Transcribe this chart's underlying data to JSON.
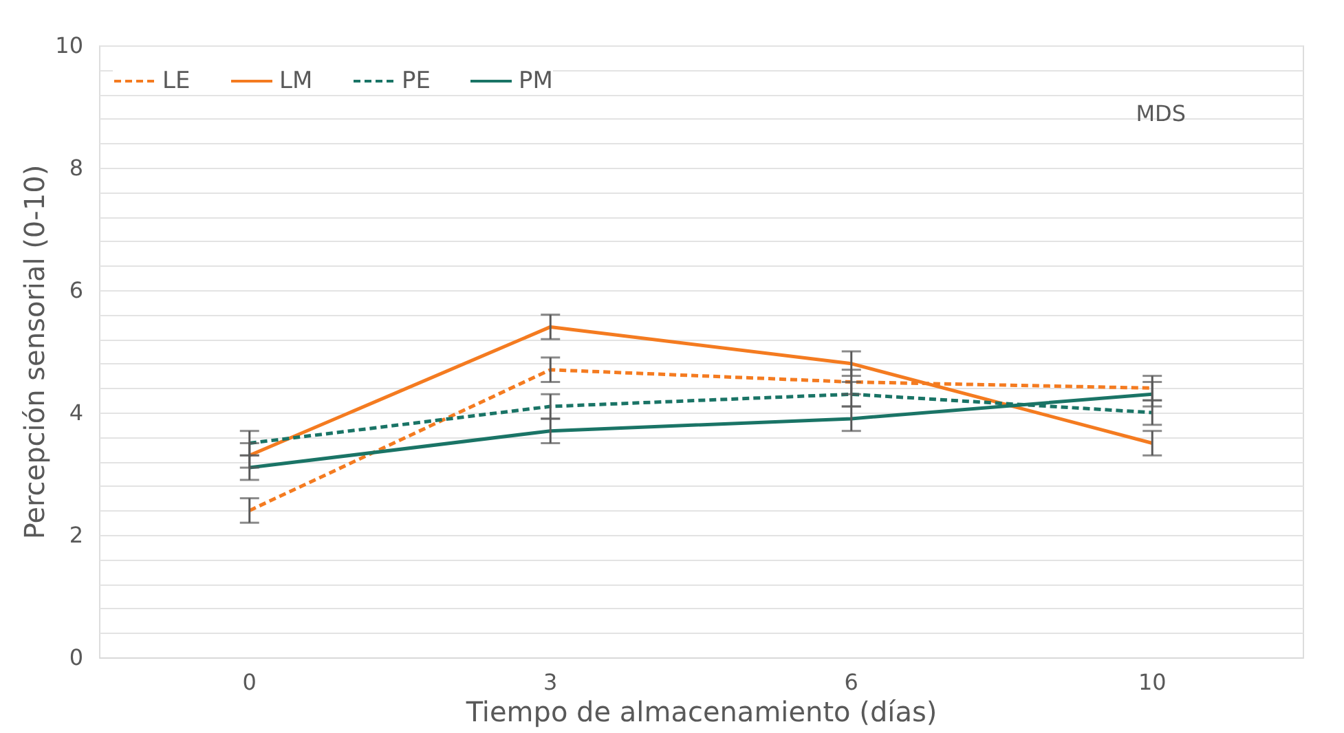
{
  "chart_data": {
    "type": "line",
    "xlabel": "Tiempo de almacenamiento (días)",
    "ylabel": "Percepción sensorial (0-10)",
    "categories": [
      "0",
      "3",
      "6",
      "10"
    ],
    "series": [
      {
        "name": "LE",
        "color": "#f47b20",
        "line_style": "dashed",
        "values": [
          2.4,
          4.7,
          4.5,
          4.4
        ],
        "errors": [
          0.2,
          0.2,
          0.2,
          0.2
        ]
      },
      {
        "name": "LM",
        "color": "#f47b20",
        "line_style": "solid",
        "values": [
          3.3,
          5.4,
          4.8,
          3.5
        ],
        "errors": [
          0.2,
          0.2,
          0.2,
          0.2
        ]
      },
      {
        "name": "PE",
        "color": "#1a7466",
        "line_style": "dashed",
        "values": [
          3.5,
          4.1,
          4.3,
          4.0
        ],
        "errors": [
          0.2,
          0.2,
          0.2,
          0.2
        ]
      },
      {
        "name": "PM",
        "color": "#1a7466",
        "line_style": "solid",
        "values": [
          3.1,
          3.7,
          3.9,
          4.3
        ],
        "errors": [
          0.2,
          0.2,
          0.2,
          0.2
        ]
      }
    ],
    "ylim": [
      0,
      10
    ],
    "yticks": [
      0,
      {
        "value": 0.4,
        "label": null
      },
      {
        "value": 0.8,
        "label": null
      },
      {
        "value": 1.2,
        "label": null
      },
      {
        "value": 1.6,
        "label": null
      },
      2,
      {
        "value": 2.4,
        "label": null
      },
      {
        "value": 2.8,
        "label": null
      },
      {
        "value": 3.2,
        "label": null
      },
      {
        "value": 3.6,
        "label": null
      },
      4,
      {
        "value": 4.4,
        "label": null
      },
      {
        "value": 4.8,
        "label": null
      },
      {
        "value": 5.2,
        "label": null
      },
      {
        "value": 5.6,
        "label": null
      },
      6,
      {
        "value": 6.4,
        "label": null
      },
      {
        "value": 6.8,
        "label": null
      },
      {
        "value": 7.2,
        "label": null
      },
      {
        "value": 7.6,
        "label": null
      },
      8,
      {
        "value": 8.4,
        "label": null
      },
      {
        "value": 8.8,
        "label": null
      },
      {
        "value": 9.2,
        "label": null
      },
      {
        "value": 9.6,
        "label": null
      },
      10
    ],
    "grid": "y",
    "legend": "top left",
    "marker": "none",
    "annotations": [
      "MDS"
    ]
  }
}
